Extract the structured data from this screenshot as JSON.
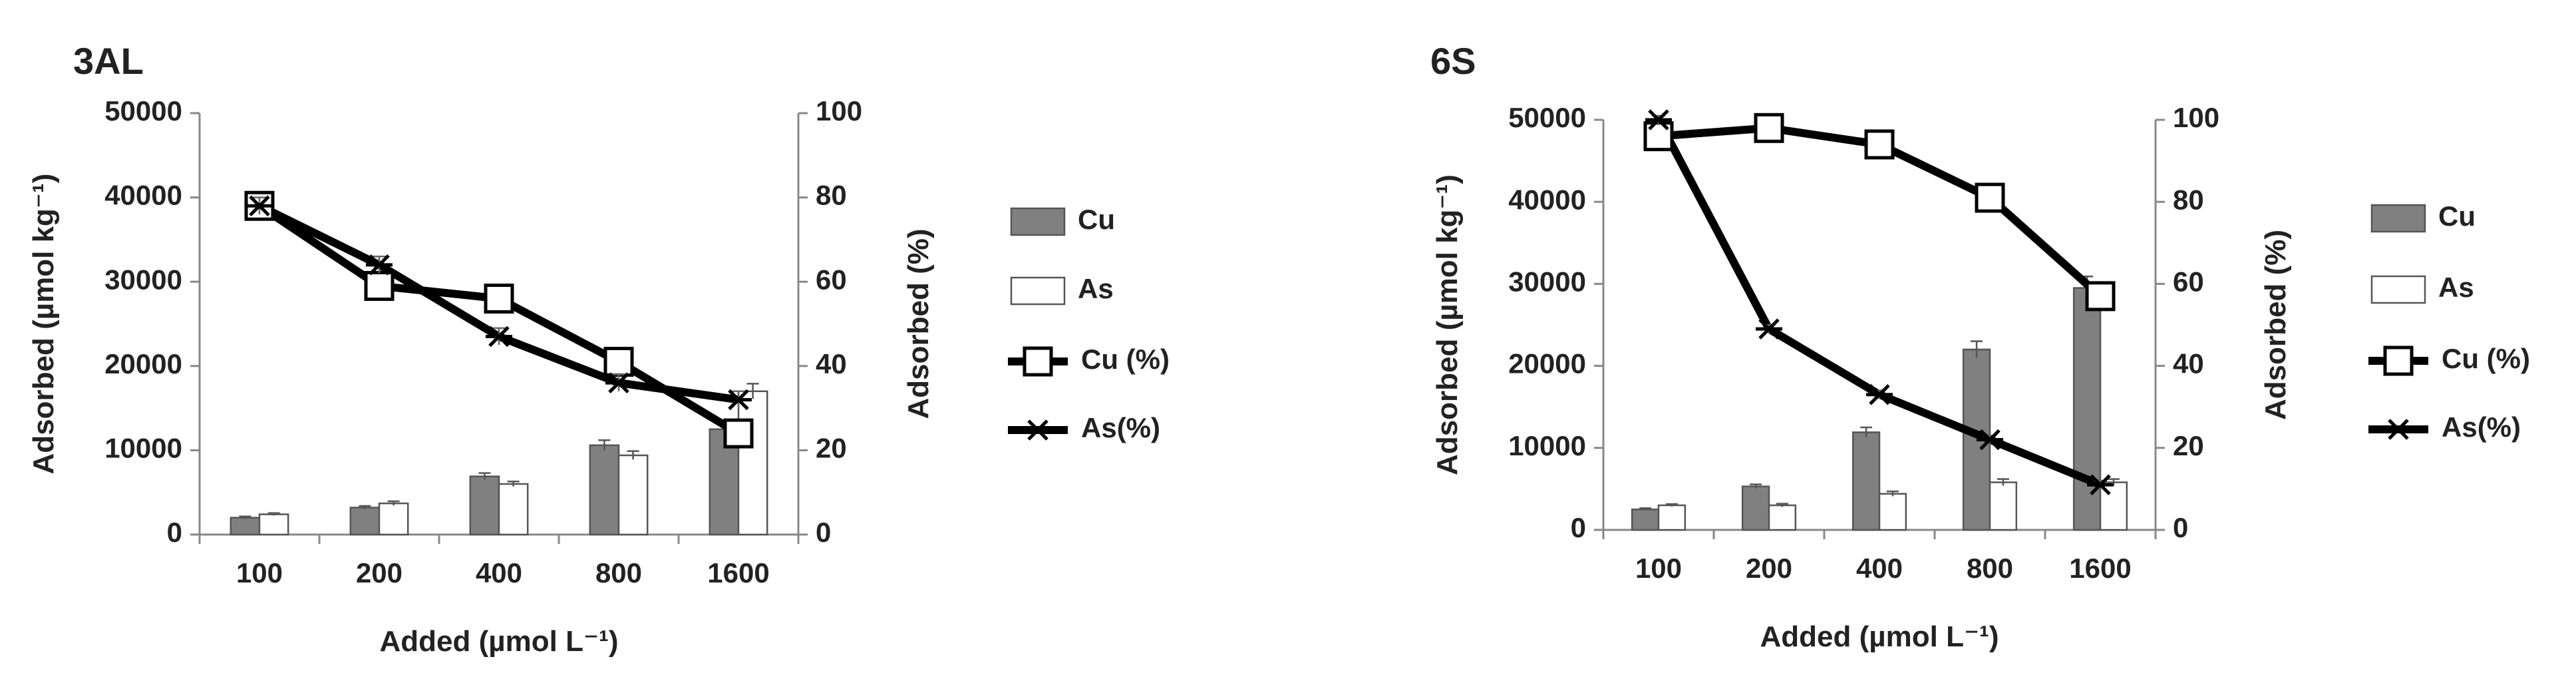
{
  "chart_data": [
    {
      "type": "bar+line",
      "title": "3AL",
      "categories": [
        "100",
        "200",
        "400",
        "800",
        "1600"
      ],
      "xlabel": "Added (µmol L⁻¹)",
      "ylabel_left": "Adsorbed (µmol kg⁻¹)",
      "ylabel_right": "Adsorbed (%)",
      "ylim_left": [
        0,
        50000
      ],
      "yticks_left": [
        "0",
        "10000",
        "20000",
        "30000",
        "40000",
        "50000"
      ],
      "ylim_right": [
        0,
        100
      ],
      "yticks_right": [
        "0",
        "20",
        "40",
        "60",
        "80",
        "100"
      ],
      "grid": false,
      "legend_position": "right",
      "bar_series": [
        {
          "name": "Cu",
          "color": "#808080",
          "values": [
            2000,
            3200,
            6900,
            10600,
            12500
          ],
          "errors": [
            150,
            200,
            400,
            600,
            700
          ]
        },
        {
          "name": "As",
          "color": "#ffffff",
          "values": [
            2400,
            3700,
            6000,
            9400,
            17000
          ],
          "errors": [
            150,
            250,
            300,
            500,
            900
          ]
        }
      ],
      "line_series": [
        {
          "name": "Cu (%)",
          "marker": "square",
          "values": [
            78,
            59,
            56,
            41,
            24
          ],
          "errors": [
            3,
            2,
            2,
            2,
            2
          ]
        },
        {
          "name": "As(%)",
          "marker": "asterisk",
          "values": [
            78,
            64,
            47,
            36,
            32
          ],
          "errors": [
            2,
            2,
            2,
            2,
            2
          ]
        }
      ]
    },
    {
      "type": "bar+line",
      "title": "6S",
      "categories": [
        "100",
        "200",
        "400",
        "800",
        "1600"
      ],
      "xlabel": "Added (µmol L⁻¹)",
      "ylabel_left": "Adsorbed (µmol kg⁻¹)",
      "ylabel_right": "Adsorbed (%)",
      "ylim_left": [
        0,
        50000
      ],
      "yticks_left": [
        "0",
        "10000",
        "20000",
        "30000",
        "40000",
        "50000"
      ],
      "ylim_right": [
        0,
        100
      ],
      "yticks_right": [
        "0",
        "20",
        "40",
        "60",
        "80",
        "100"
      ],
      "grid": false,
      "legend_position": "right",
      "bar_series": [
        {
          "name": "Cu",
          "color": "#808080",
          "values": [
            2500,
            5300,
            11900,
            22000,
            29500
          ],
          "errors": [
            150,
            250,
            600,
            1000,
            1400
          ]
        },
        {
          "name": "As",
          "color": "#ffffff",
          "values": [
            3000,
            3000,
            4400,
            5800,
            5800
          ],
          "errors": [
            150,
            200,
            300,
            400,
            400
          ]
        }
      ],
      "line_series": [
        {
          "name": "Cu (%)",
          "marker": "square",
          "values": [
            96,
            98,
            94,
            81,
            57
          ],
          "errors": [
            3,
            2,
            3,
            2,
            2
          ]
        },
        {
          "name": "As(%)",
          "marker": "asterisk",
          "values": [
            100,
            49,
            33,
            22,
            11
          ],
          "errors": [
            1,
            1,
            1,
            1,
            1
          ]
        }
      ]
    }
  ]
}
